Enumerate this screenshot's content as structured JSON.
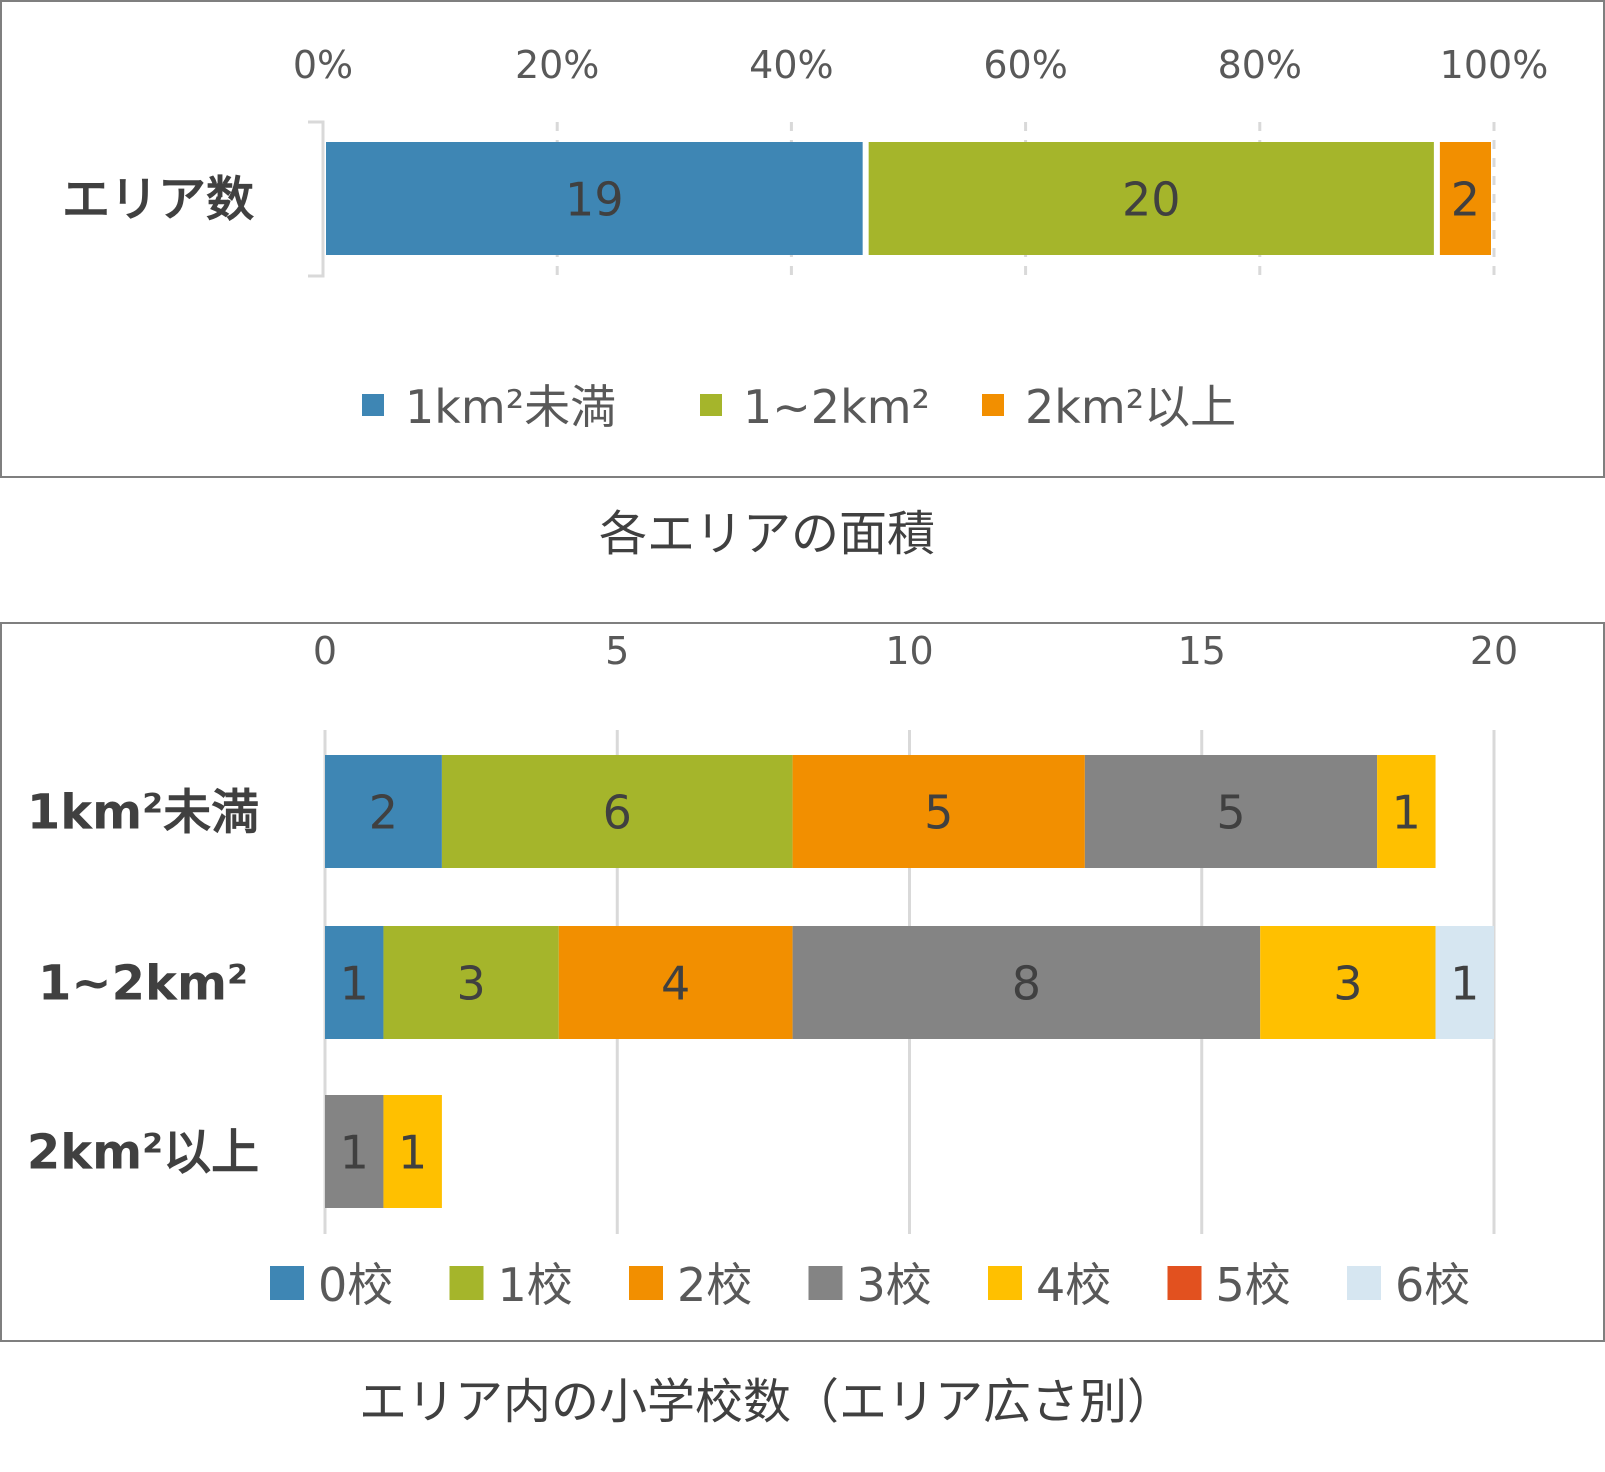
{
  "chart_data": [
    {
      "type": "bar",
      "orientation": "horizontal",
      "stacking": "percent",
      "caption": "各エリアの面積",
      "categories": [
        "エリア数"
      ],
      "series": [
        {
          "name": "1km²未満",
          "color": "#3E86B4",
          "values": [
            19
          ]
        },
        {
          "name": "1~2km²",
          "color": "#A5B52B",
          "values": [
            20
          ]
        },
        {
          "name": "2km²以上",
          "color": "#F28F00",
          "values": [
            2
          ]
        }
      ],
      "x_ticks": [
        "0%",
        "20%",
        "40%",
        "60%",
        "80%",
        "100%"
      ],
      "xlim": [
        0,
        100
      ],
      "grid": true,
      "legend_position": "bottom"
    },
    {
      "type": "bar",
      "orientation": "horizontal",
      "stacking": "stacked",
      "caption": "エリア内の小学校数（エリア広さ別）",
      "categories": [
        "1km²未満",
        "1~2km²",
        "2km²以上"
      ],
      "series": [
        {
          "name": "0校",
          "color": "#3E86B4",
          "values": [
            2,
            1,
            0
          ]
        },
        {
          "name": "1校",
          "color": "#A5B52B",
          "values": [
            6,
            3,
            0
          ]
        },
        {
          "name": "2校",
          "color": "#F28F00",
          "values": [
            5,
            4,
            0
          ]
        },
        {
          "name": "3校",
          "color": "#848484",
          "values": [
            5,
            8,
            1
          ]
        },
        {
          "name": "4校",
          "color": "#FFC000",
          "values": [
            1,
            3,
            1
          ]
        },
        {
          "name": "5校",
          "color": "#E2511F",
          "values": [
            0,
            0,
            0
          ]
        },
        {
          "name": "6校",
          "color": "#D6E6F1",
          "values": [
            0,
            1,
            0
          ]
        }
      ],
      "x_ticks": [
        "0",
        "5",
        "10",
        "15",
        "20"
      ],
      "xlim": [
        0,
        20
      ],
      "grid": true,
      "legend_position": "bottom"
    }
  ]
}
